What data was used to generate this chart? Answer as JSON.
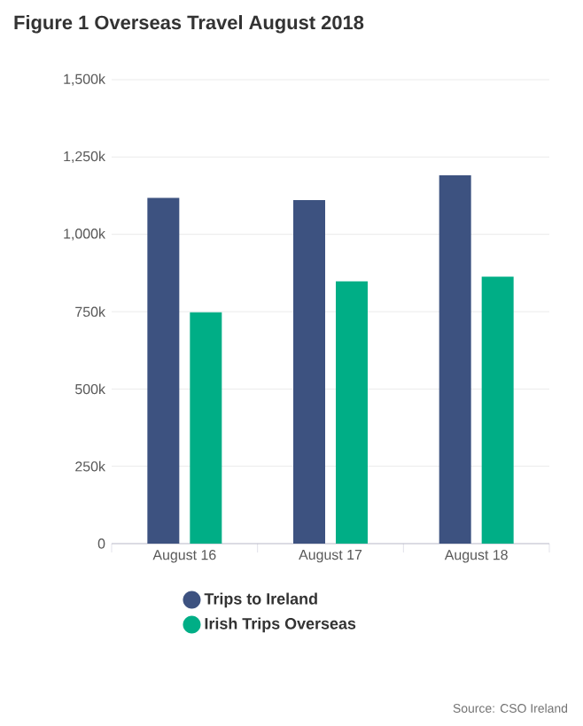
{
  "chart_data": {
    "type": "bar",
    "title": "Figure 1 Overseas Travel August 2018",
    "categories": [
      "August 16",
      "August 17",
      "August 18"
    ],
    "series": [
      {
        "name": "Trips to Ireland",
        "color": "#3d5280",
        "values": [
          1118,
          1111,
          1191
        ]
      },
      {
        "name": "Irish Trips Overseas",
        "color": "#00ae86",
        "values": [
          748,
          848,
          863
        ]
      }
    ],
    "ylim": [
      0,
      1500
    ],
    "yticks": [
      0,
      {
        "value": 250,
        "label": "250k"
      },
      {
        "value": 500,
        "label": "500k"
      },
      {
        "value": 750,
        "label": "750k"
      },
      {
        "value": 1000,
        "label": "1,000k"
      },
      {
        "value": 1250,
        "label": "1,250k"
      },
      {
        "value": 1500,
        "label": "1,500k"
      }
    ],
    "grid": "y",
    "legend": "bottom",
    "annotations": [
      "Source: CSO Ireland"
    ]
  }
}
